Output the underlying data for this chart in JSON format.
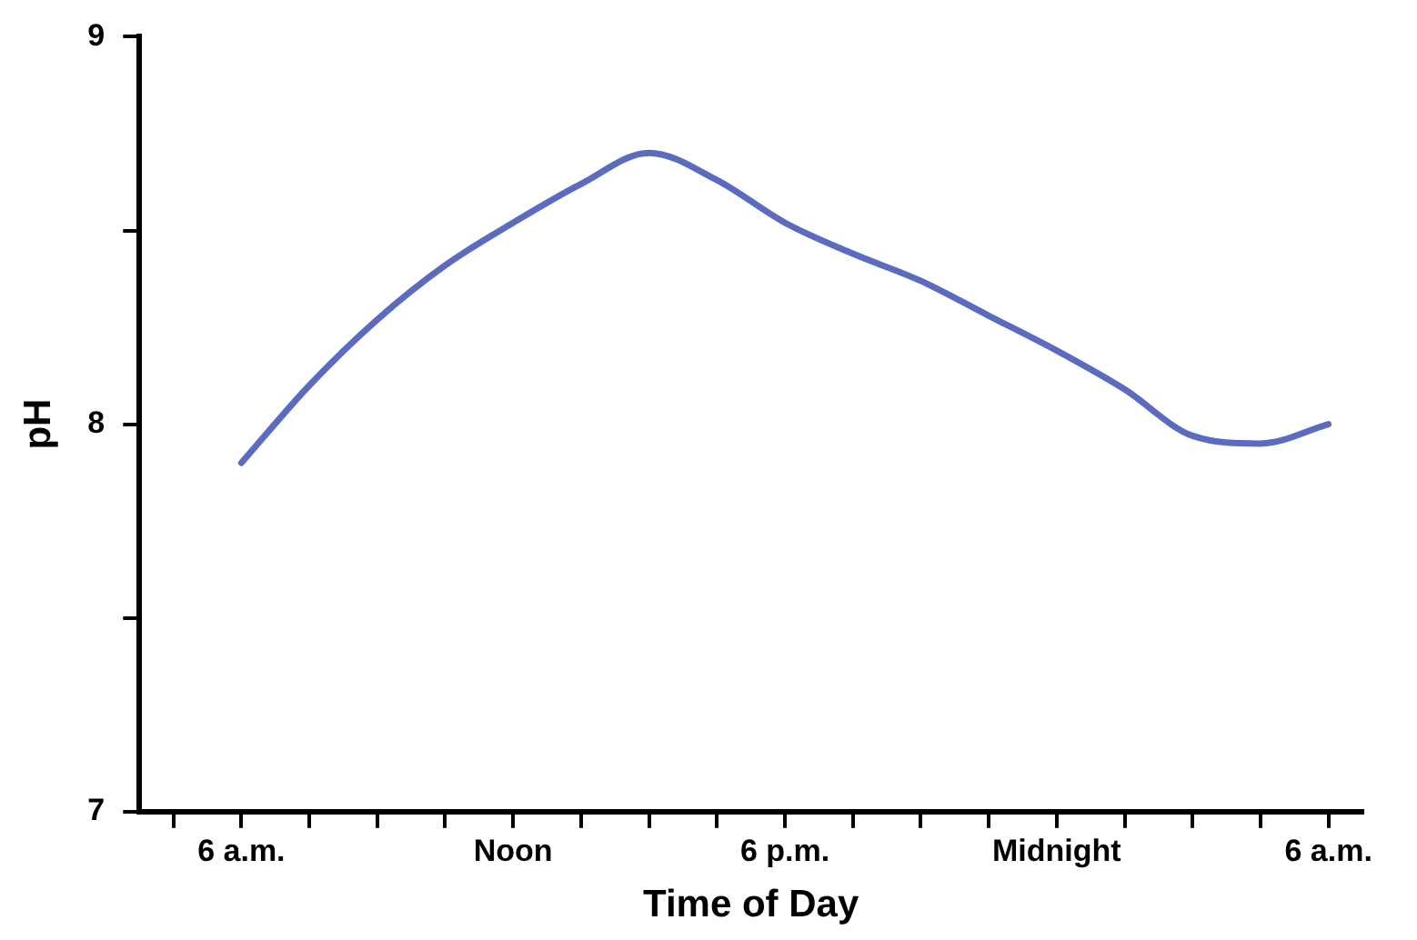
{
  "chart_data": {
    "type": "line",
    "xlabel": "Time of Day",
    "ylabel": "pH",
    "categories": [
      null,
      "6 a.m.",
      null,
      null,
      null,
      "Noon",
      null,
      null,
      null,
      "6 p.m.",
      null,
      null,
      null,
      "Midnight",
      null,
      null,
      null,
      "6 a.m."
    ],
    "series": [
      {
        "color": "#5b6bbf",
        "values": [
          null,
          7.9,
          8.1,
          8.27,
          8.41,
          8.52,
          8.62,
          8.7,
          8.63,
          8.52,
          8.44,
          8.37,
          8.28,
          8.19,
          8.09,
          7.97,
          7.95,
          8.0
        ]
      }
    ],
    "ylim": [
      7,
      9
    ],
    "yticks": [
      7,
      {
        "value": 7.5,
        "label": null
      },
      8,
      {
        "value": 8.5,
        "label": null
      },
      9
    ]
  }
}
